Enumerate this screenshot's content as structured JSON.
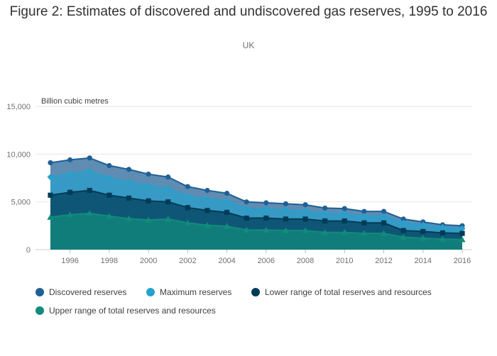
{
  "title": "Figure 2: Estimates of discovered and undiscovered gas reserves, 1995 to 2016",
  "subtitle": "UK",
  "chart_data": {
    "type": "area",
    "title": "Figure 2: Estimates of discovered and undiscovered gas reserves, 1995 to 2016",
    "subtitle": "UK",
    "xlabel": "",
    "ylabel": "Billion cubic metres",
    "x": [
      1995,
      1996,
      1997,
      1998,
      1999,
      2000,
      2001,
      2002,
      2003,
      2004,
      2005,
      2006,
      2007,
      2008,
      2009,
      2010,
      2011,
      2012,
      2013,
      2014,
      2015,
      2016
    ],
    "x_ticks": [
      "1996",
      "1998",
      "2000",
      "2002",
      "2004",
      "2006",
      "2008",
      "2010",
      "2012",
      "2014",
      "2016"
    ],
    "y_ticks": [
      "0",
      "5,000",
      "10,000",
      "15,000"
    ],
    "ylim": [
      0,
      15000
    ],
    "grid": true,
    "legend_position": "bottom",
    "series": [
      {
        "name": "Discovered reserves",
        "color": "#206095",
        "marker": "circle",
        "values": [
          9100,
          9400,
          9600,
          8800,
          8400,
          7900,
          7600,
          6600,
          6200,
          5900,
          5000,
          4900,
          4800,
          4700,
          4350,
          4300,
          4000,
          4000,
          3200,
          2900,
          2600,
          2500
        ]
      },
      {
        "name": "Maximum reserves",
        "color": "#27a0cc",
        "marker": "diamond",
        "values": [
          7600,
          7900,
          8200,
          7500,
          7100,
          6700,
          6400,
          5600,
          5300,
          5100,
          4300,
          4250,
          4150,
          4050,
          3800,
          3750,
          3500,
          3500,
          2800,
          2600,
          2350,
          2200
        ]
      },
      {
        "name": "Lower range of total reserves and resources",
        "color": "#003c57",
        "marker": "square",
        "values": [
          5700,
          6000,
          6200,
          5700,
          5400,
          5100,
          5000,
          4400,
          4100,
          3900,
          3300,
          3300,
          3200,
          3200,
          3000,
          3000,
          2800,
          2800,
          2000,
          1900,
          1750,
          1700
        ]
      },
      {
        "name": "Upper range of total reserves and resources",
        "color": "#118c7b",
        "marker": "triangle",
        "values": [
          3400,
          3650,
          3800,
          3500,
          3250,
          3100,
          3200,
          2800,
          2550,
          2450,
          2050,
          2050,
          2000,
          2000,
          1800,
          1800,
          1700,
          1700,
          1300,
          1200,
          1100,
          1050
        ]
      }
    ]
  }
}
